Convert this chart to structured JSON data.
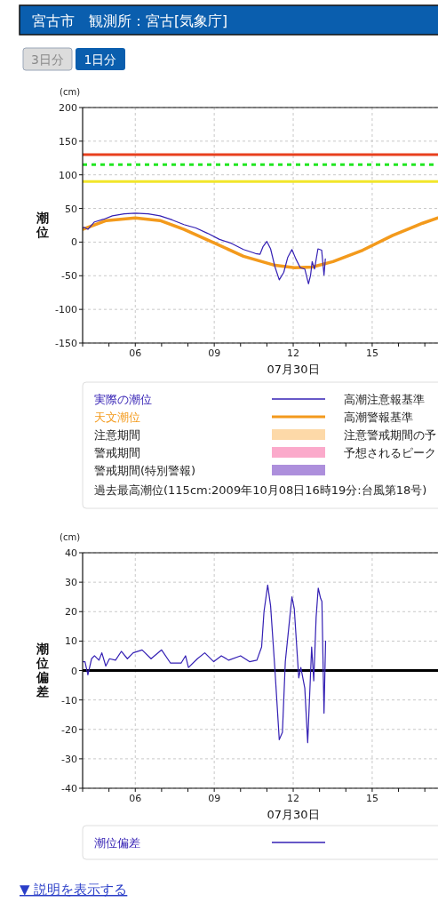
{
  "chart_data": [
    {
      "type": "line",
      "title": "宮古市　観測所：宮古[気象庁]",
      "ylabel": "潮位",
      "xlabel": "07月30日",
      "annotations": [
        "3日分",
        "1日分",
        "(cm)",
        "注意期間",
        "警戒期間",
        "警戒期間(特別警報)",
        "高潮注意報基準",
        "高潮警報基準",
        "注意警戒期間の予",
        "予想されるピーク",
        "過去最高潮位(115cm:2009年10月08日16時19分:台風第18号)"
      ],
      "xlim": [
        4,
        17.5
      ],
      "xticks": [
        {
          "value": 4,
          "label": null
        },
        {
          "value": 5,
          "label": null
        },
        {
          "value": 6,
          "label": "06"
        },
        {
          "value": 7,
          "label": null
        },
        {
          "value": 8,
          "label": null
        },
        {
          "value": 9,
          "label": "09"
        },
        {
          "value": 10,
          "label": null
        },
        {
          "value": 11,
          "label": null
        },
        {
          "value": 12,
          "label": "12"
        },
        {
          "value": 13,
          "label": null
        },
        {
          "value": 14,
          "label": null
        },
        {
          "value": 15,
          "label": "15"
        },
        {
          "value": 16,
          "label": null
        },
        {
          "value": 17,
          "label": null
        }
      ],
      "ylim": [
        -150,
        200
      ],
      "yticks": [
        -150,
        -100,
        -50,
        0,
        50,
        100,
        150,
        200
      ],
      "grid": true,
      "legend": "bottom",
      "series": [
        {
          "name": "実際の潮位",
          "color": "#3420b4",
          "x": [
            4.0,
            4.05,
            4.2,
            4.45,
            4.8,
            5.13,
            5.58,
            6.0,
            6.49,
            6.94,
            7.4,
            7.85,
            8.3,
            8.75,
            9.2,
            9.66,
            10.11,
            10.57,
            10.74,
            10.85,
            11.0,
            11.14,
            11.3,
            11.47,
            11.64,
            11.79,
            11.95,
            12.1,
            12.27,
            12.44,
            12.58,
            12.66,
            12.72,
            12.81,
            12.94,
            13.08,
            13.17,
            13.22
          ],
          "values": [
            21,
            22,
            19,
            30,
            34,
            39,
            42,
            43,
            42,
            39,
            33,
            26,
            21,
            13,
            4,
            -2,
            -11,
            -17,
            -18,
            -7,
            1,
            -10,
            -36,
            -56,
            -45,
            -23,
            -11,
            -25,
            -38,
            -40,
            -62,
            -49,
            -29,
            -40,
            -10,
            -12,
            -49,
            -25
          ]
        },
        {
          "name": "天文潮位",
          "color": "#f39a1c",
          "x": [
            4.0,
            4.9,
            6.0,
            6.94,
            7.85,
            8.98,
            10.11,
            11.25,
            12.05,
            12.72,
            13.51,
            14.64,
            15.78,
            16.91,
            17.5
          ],
          "values": [
            19,
            32,
            36,
            32,
            19,
            -1,
            -21,
            -34,
            -38,
            -37,
            -29,
            -12,
            10,
            28,
            36
          ]
        }
      ],
      "ref_lines": [
        {
          "axis": "y",
          "value": 90,
          "color": "#f2e62a"
        },
        {
          "axis": "y",
          "value": 130,
          "color": "#e8401e"
        },
        {
          "axis": "y",
          "value": 115,
          "color": "#22e622",
          "line_style": "dotted"
        }
      ]
    },
    {
      "type": "line",
      "ylabel": "潮位偏差",
      "xlabel": "07月30日",
      "annotations": [
        "(cm)",
        "▼ 説明を表示する"
      ],
      "xlim": [
        4,
        17.5
      ],
      "xticks": [
        {
          "value": 4,
          "label": null
        },
        {
          "value": 5,
          "label": null
        },
        {
          "value": 6,
          "label": "06"
        },
        {
          "value": 7,
          "label": null
        },
        {
          "value": 8,
          "label": null
        },
        {
          "value": 9,
          "label": "09"
        },
        {
          "value": 10,
          "label": null
        },
        {
          "value": 11,
          "label": null
        },
        {
          "value": 12,
          "label": "12"
        },
        {
          "value": 13,
          "label": null
        },
        {
          "value": 14,
          "label": null
        },
        {
          "value": 15,
          "label": "15"
        },
        {
          "value": 16,
          "label": null
        },
        {
          "value": 17,
          "label": null
        }
      ],
      "ylim": [
        -40,
        40
      ],
      "yticks": [
        -40,
        -30,
        -20,
        -10,
        0,
        10,
        20,
        30,
        40
      ],
      "grid": true,
      "legend": "bottom",
      "series": [
        {
          "name": "潮位偏差",
          "color": "#3420b4",
          "x": [
            4.0,
            4.09,
            4.2,
            4.34,
            4.45,
            4.62,
            4.73,
            4.88,
            5.02,
            5.25,
            5.47,
            5.7,
            5.92,
            6.26,
            6.6,
            7.0,
            7.34,
            7.74,
            7.91,
            8.02,
            8.36,
            8.64,
            8.98,
            9.27,
            9.55,
            10.0,
            10.34,
            10.62,
            10.8,
            10.89,
            11.03,
            11.14,
            11.3,
            11.47,
            11.59,
            11.7,
            11.87,
            11.95,
            12.04,
            12.21,
            12.29,
            12.44,
            12.55,
            12.7,
            12.78,
            12.87,
            12.95,
            13.04,
            13.09,
            13.17,
            13.23
          ],
          "values": [
            3,
            3,
            -1.5,
            4,
            5,
            3.5,
            6,
            1.5,
            4,
            3.5,
            6.5,
            4,
            6,
            7,
            4,
            7,
            2.5,
            2.5,
            5,
            1,
            4,
            6,
            3,
            5,
            3.5,
            5,
            3,
            3.5,
            8,
            20,
            29,
            22,
            1,
            -23.5,
            -21,
            3,
            18,
            25,
            21,
            -2.5,
            1,
            -6,
            -24.5,
            8,
            -3.5,
            18,
            28,
            24.5,
            23.5,
            -14.5,
            10
          ]
        }
      ],
      "ref_lines": [
        {
          "axis": "y",
          "value": 0,
          "color": "#000000"
        }
      ]
    }
  ]
}
